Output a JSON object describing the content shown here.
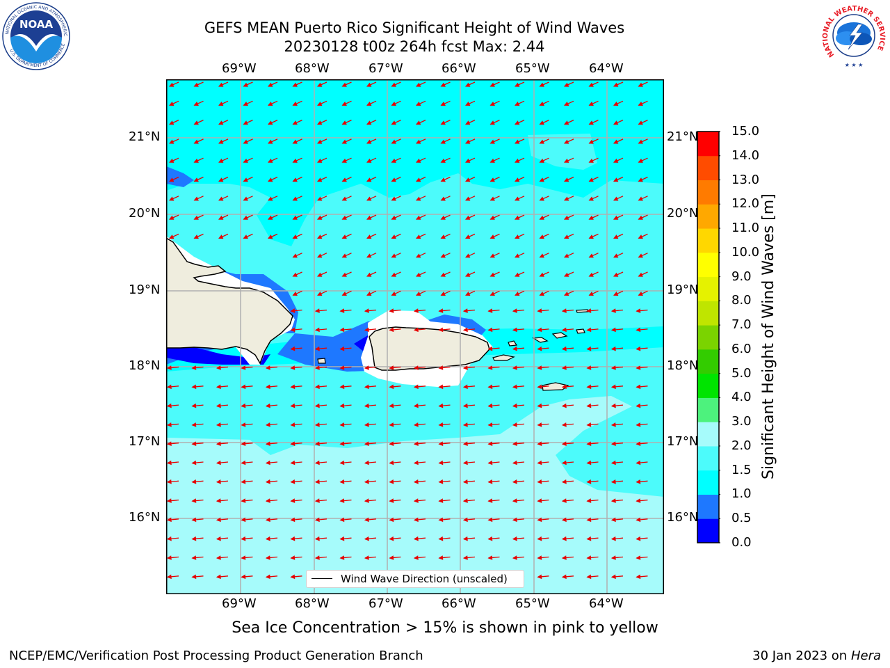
{
  "header": {
    "title_line1": "GEFS MEAN Puerto Rico Significant Height of Wind Waves",
    "title_line2": "20230128 t00z 264h fcst   Max: 2.44"
  },
  "logos": {
    "noaa_text": "NOAA",
    "noaa_ring_top": "NATIONAL OCEANIC AND ATMOSPHERIC ADMINISTRATION",
    "noaa_ring_bottom": "U.S. DEPARTMENT OF COMMERCE",
    "nws_ring_text": "NATIONAL WEATHER SERVICE"
  },
  "map": {
    "lon_ticks": [
      "69°W",
      "68°W",
      "67°W",
      "66°W",
      "65°W",
      "64°W"
    ],
    "lat_ticks": [
      "21°N",
      "20°N",
      "19°N",
      "18°N",
      "17°N",
      "16°N"
    ],
    "wave_direction": "westward (toward west-southwest in north)",
    "legend_label": "Wind Wave Direction (unscaled)",
    "colors": {
      "land": "#efedde",
      "vector": "#e60000",
      "grid": "#b0b0b0"
    }
  },
  "colorbar": {
    "label": "Significant Height of Wind Waves [m]",
    "tick_labels": [
      "0.0",
      "0.5",
      "1.0",
      "1.5",
      "2.0",
      "3.0",
      "4.0",
      "5.0",
      "6.0",
      "7.0",
      "8.0",
      "9.0",
      "10.0",
      "11.0",
      "12.0",
      "13.0",
      "14.0",
      "15.0"
    ],
    "colors": [
      "#0000ff",
      "#1e78ff",
      "#00ffff",
      "#4cfbfb",
      "#a6fbfb",
      "#4df27d",
      "#00e400",
      "#33cc00",
      "#7bd300",
      "#bfe500",
      "#e5f200",
      "#ffff00",
      "#ffd700",
      "#ffa800",
      "#ff7b00",
      "#ff4c00",
      "#ff0000"
    ]
  },
  "notes": {
    "sea_ice": "Sea Ice Concentration > 15% is shown in pink to yellow"
  },
  "footer": {
    "left": "NCEP/EMC/Verification Post Processing Product Generation Branch",
    "right_date": "30 Jan 2023 on ",
    "right_host": "Hera"
  }
}
